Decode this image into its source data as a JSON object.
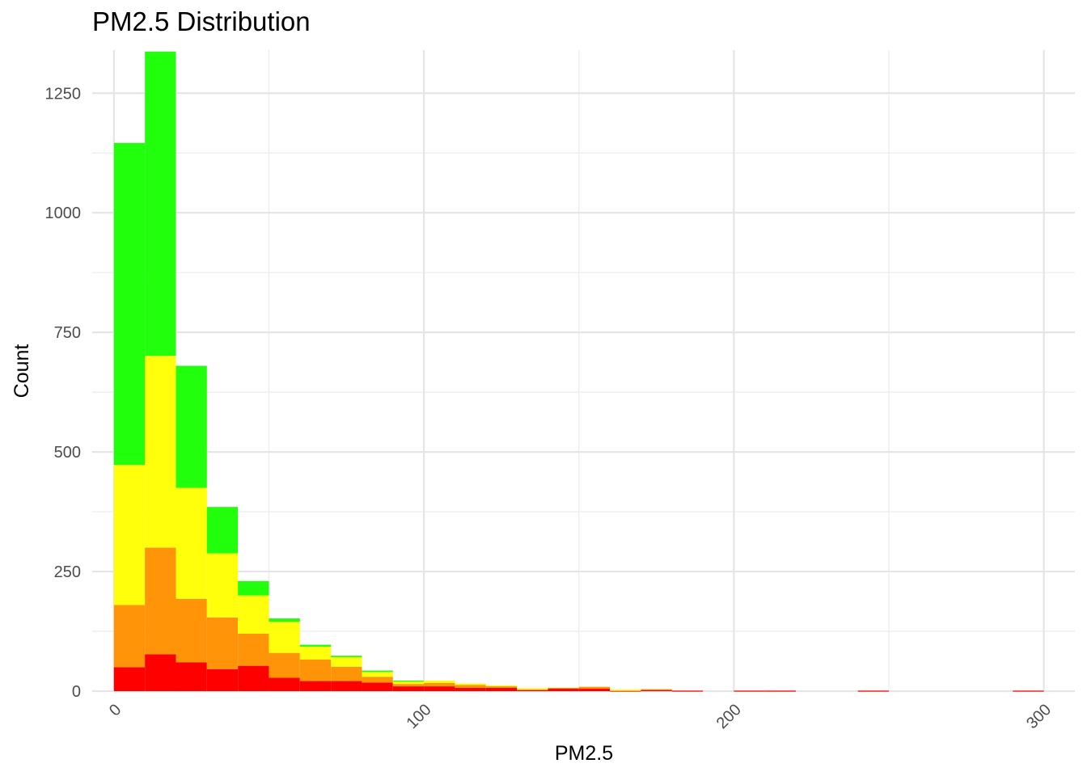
{
  "chart_data": {
    "type": "bar",
    "stacked": true,
    "title": "PM2.5 Distribution",
    "xlabel": "PM2.5",
    "ylabel": "Count",
    "xlim": [
      -7,
      310
    ],
    "ylim": [
      0,
      1340
    ],
    "x_ticks": [
      0,
      100,
      200,
      300
    ],
    "y_ticks": [
      0,
      250,
      500,
      750,
      1000,
      1250
    ],
    "x_tick_rotation": -45,
    "grid": true,
    "legend": "none",
    "bin_width": 10,
    "bin_centers": [
      5,
      15,
      25,
      35,
      45,
      55,
      65,
      75,
      85,
      95,
      105,
      115,
      125,
      135,
      145,
      155,
      165,
      175,
      185,
      195,
      205,
      215,
      225,
      235,
      245,
      255,
      265,
      275,
      285,
      295
    ],
    "series": [
      {
        "color": "#ff0000",
        "values": [
          50,
          77,
          60,
          46,
          53,
          28,
          21,
          21,
          18,
          10,
          10,
          7,
          7,
          2,
          5,
          5,
          1,
          3,
          1,
          0,
          1,
          1,
          0,
          0,
          1,
          0,
          0,
          0,
          0,
          1
        ]
      },
      {
        "color": "#ff9408",
        "values": [
          130,
          223,
          133,
          108,
          67,
          52,
          45,
          30,
          12,
          5,
          7,
          6,
          4,
          2,
          2,
          4,
          1,
          1,
          0,
          0,
          0,
          0,
          0,
          0,
          0,
          0,
          0,
          0,
          0,
          0
        ]
      },
      {
        "color": "#ffff0c",
        "values": [
          293,
          401,
          232,
          134,
          80,
          65,
          27,
          20,
          10,
          6,
          5,
          3,
          1,
          2,
          0,
          0,
          1,
          0,
          0,
          0,
          0,
          0,
          0,
          0,
          0,
          0,
          0,
          0,
          0,
          0
        ]
      },
      {
        "color": "#22ff0c",
        "values": [
          673,
          636,
          255,
          97,
          30,
          7,
          4,
          3,
          3,
          1,
          0,
          0,
          0,
          0,
          0,
          0,
          0,
          0,
          0,
          0,
          0,
          0,
          0,
          0,
          0,
          0,
          0,
          0,
          0,
          0
        ]
      }
    ]
  }
}
